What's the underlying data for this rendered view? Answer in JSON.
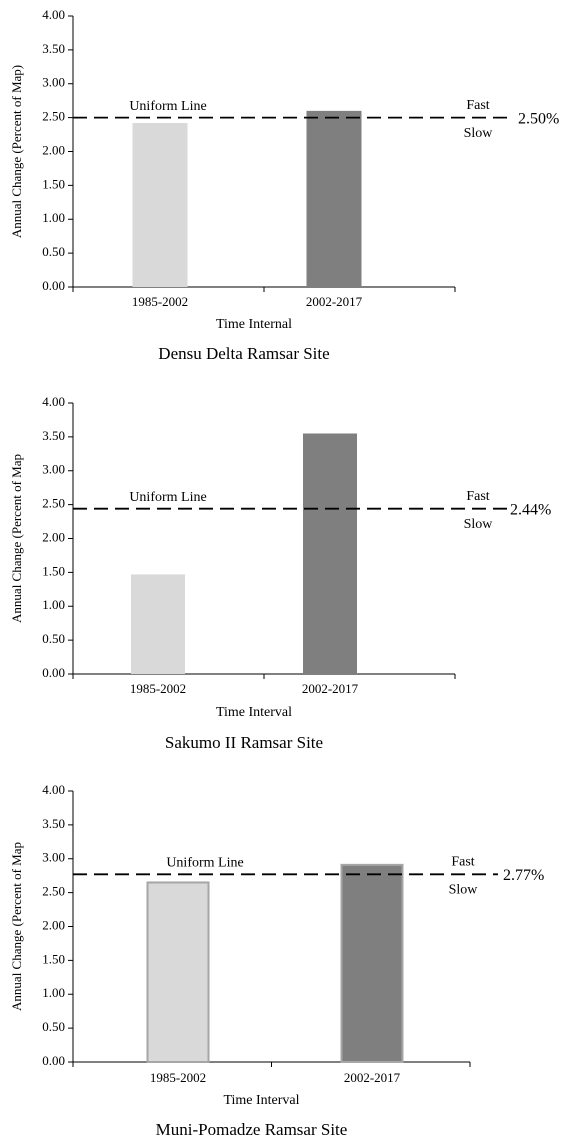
{
  "chart_data": [
    {
      "type": "bar",
      "title": "Densu Delta Ramsar Site",
      "xlabel": "Time Internal",
      "ylabel": "Annual Change (Percent of Map)",
      "categories": [
        "1985-2002",
        "2002-2017"
      ],
      "values": [
        2.42,
        2.6
      ],
      "colors": [
        "#d9d9d9",
        "#7f7f7f"
      ],
      "ylim": [
        0,
        4
      ],
      "yticks": [
        {
          "value": 0,
          "label": "0.00"
        },
        {
          "value": 0.5,
          "label": "0.50"
        },
        {
          "value": 1,
          "label": "1.00"
        },
        {
          "value": 1.5,
          "label": "1.50"
        },
        {
          "value": 2,
          "label": "2.00"
        },
        {
          "value": 2.5,
          "label": "2.50"
        },
        {
          "value": 3,
          "label": "3.00"
        },
        {
          "value": 3.5,
          "label": "3.50"
        },
        {
          "value": 4,
          "label": "4.00"
        }
      ],
      "reference_line": {
        "name": "Uniform Line",
        "value": 2.5,
        "label": "2.50%"
      },
      "above_label": "Fast",
      "below_label": "Slow"
    },
    {
      "type": "bar",
      "title": "Sakumo II Ramsar Site",
      "xlabel": "Time Interval",
      "ylabel": "Annual Change (Percent of Map",
      "categories": [
        "1985-2002",
        "2002-2017"
      ],
      "values": [
        1.47,
        3.55
      ],
      "colors": [
        "#d9d9d9",
        "#7f7f7f"
      ],
      "ylim": [
        0,
        4
      ],
      "yticks": [
        {
          "value": 0,
          "label": "0.00"
        },
        {
          "value": 0.5,
          "label": "0.50"
        },
        {
          "value": 1,
          "label": "1.00"
        },
        {
          "value": 1.5,
          "label": "1.50"
        },
        {
          "value": 2,
          "label": "2.00"
        },
        {
          "value": 2.5,
          "label": "2.50"
        },
        {
          "value": 3,
          "label": "3.00"
        },
        {
          "value": 3.5,
          "label": "3.50"
        },
        {
          "value": 4,
          "label": "4.00"
        }
      ],
      "reference_line": {
        "name": "Uniform Line",
        "value": 2.44,
        "label": "2.44%"
      },
      "above_label": "Fast",
      "below_label": "Slow"
    },
    {
      "type": "bar",
      "title": "Muni-Pomadze Ramsar Site",
      "xlabel": "Time Interval",
      "ylabel": "Annual Change (Percent of Map",
      "categories": [
        "1985-2002",
        "2002-2017"
      ],
      "values": [
        2.65,
        2.91
      ],
      "colors": [
        "#d9d9d9",
        "#7f7f7f"
      ],
      "edgecolor": "#a6a6a6",
      "ylim": [
        0,
        4
      ],
      "yticks": [
        {
          "value": 0,
          "label": "0.00"
        },
        {
          "value": 0.5,
          "label": "0.50"
        },
        {
          "value": 1,
          "label": "1.00"
        },
        {
          "value": 1.5,
          "label": "1.50"
        },
        {
          "value": 2,
          "label": "2.00"
        },
        {
          "value": 2.5,
          "label": "2.50"
        },
        {
          "value": 3,
          "label": "3.00"
        },
        {
          "value": 3.5,
          "label": "3.50"
        },
        {
          "value": 4,
          "label": "4.00"
        }
      ],
      "reference_line": {
        "name": "Uniform Line",
        "value": 2.77,
        "label": "2.77%"
      },
      "above_label": "Fast",
      "below_label": "Slow"
    }
  ]
}
